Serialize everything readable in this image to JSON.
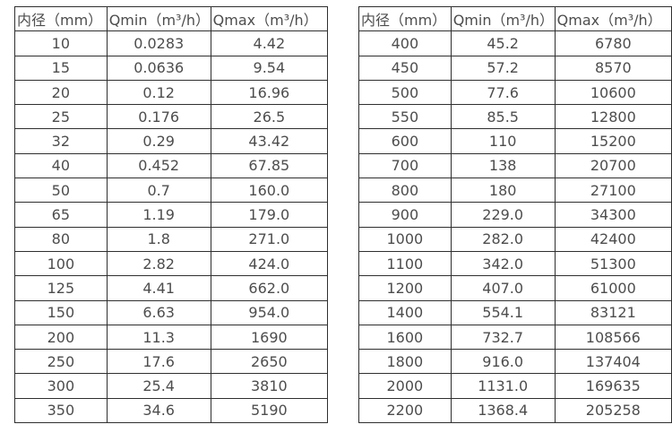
{
  "colors": {
    "background": "#ffffff",
    "text": "#4d4d4d",
    "border": "#2f2f2f"
  },
  "tables": [
    {
      "name": "small-diameter-flow-table",
      "headers": [
        "内径（mm）",
        "Qmin（m³/h）",
        "Qmax（m³/h）"
      ],
      "rows": [
        [
          "10",
          "0.0283",
          "4.42"
        ],
        [
          "15",
          "0.0636",
          "9.54"
        ],
        [
          "20",
          "0.12",
          "16.96"
        ],
        [
          "25",
          "0.176",
          "26.5"
        ],
        [
          "32",
          "0.29",
          "43.42"
        ],
        [
          "40",
          "0.452",
          "67.85"
        ],
        [
          "50",
          "0.7",
          "160.0"
        ],
        [
          "65",
          "1.19",
          "179.0"
        ],
        [
          "80",
          "1.8",
          "271.0"
        ],
        [
          "100",
          "2.82",
          "424.0"
        ],
        [
          "125",
          "4.41",
          "662.0"
        ],
        [
          "150",
          "6.63",
          "954.0"
        ],
        [
          "200",
          "11.3",
          "1690"
        ],
        [
          "250",
          "17.6",
          "2650"
        ],
        [
          "300",
          "25.4",
          "3810"
        ],
        [
          "350",
          "34.6",
          "5190"
        ]
      ]
    },
    {
      "name": "large-diameter-flow-table",
      "headers": [
        "内径（mm）",
        "Qmin（m³/h）",
        "Qmax（m³/h）"
      ],
      "rows": [
        [
          "400",
          "45.2",
          "6780"
        ],
        [
          "450",
          "57.2",
          "8570"
        ],
        [
          "500",
          "77.6",
          "10600"
        ],
        [
          "550",
          "85.5",
          "12800"
        ],
        [
          "600",
          "110",
          "15200"
        ],
        [
          "700",
          "138",
          "20700"
        ],
        [
          "800",
          "180",
          "27100"
        ],
        [
          "900",
          "229.0",
          "34300"
        ],
        [
          "1000",
          "282.0",
          "42400"
        ],
        [
          "1100",
          "342.0",
          "51300"
        ],
        [
          "1200",
          "407.0",
          "61000"
        ],
        [
          "1400",
          "554.1",
          "83121"
        ],
        [
          "1600",
          "732.7",
          "108566"
        ],
        [
          "1800",
          "916.0",
          "137404"
        ],
        [
          "2000",
          "1131.0",
          "169635"
        ],
        [
          "2200",
          "1368.4",
          "205258"
        ]
      ]
    }
  ]
}
